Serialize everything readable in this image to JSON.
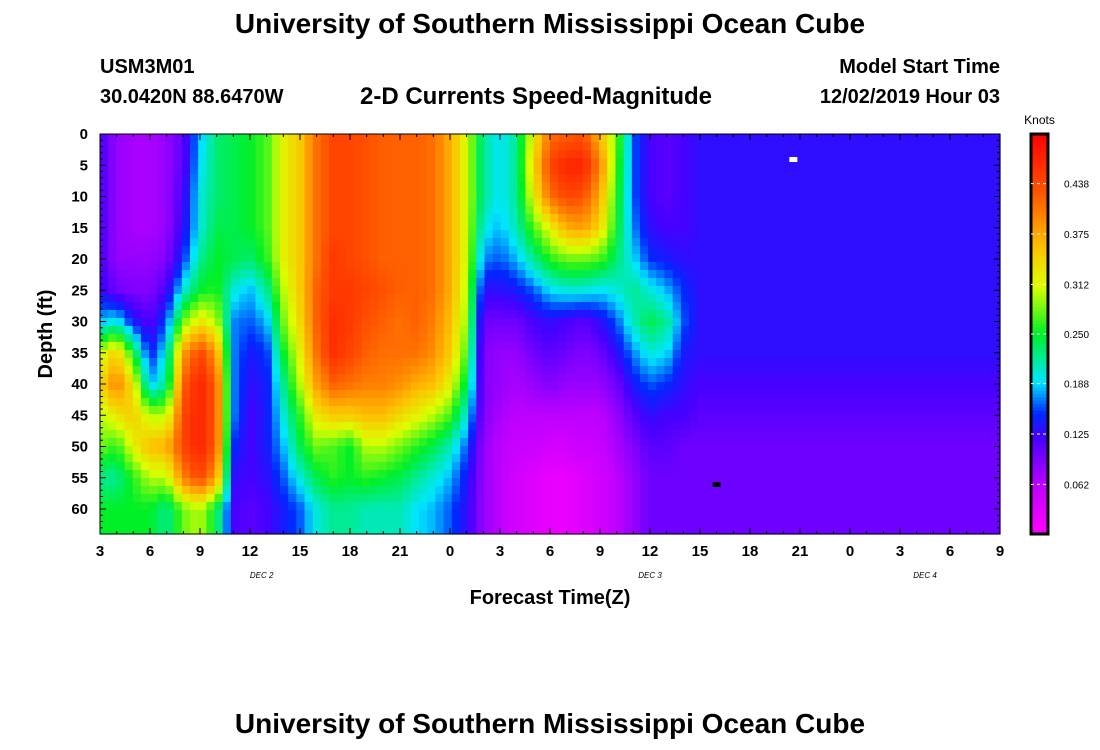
{
  "header": {
    "title": "University of Southern Mississippi Ocean Cube",
    "station": "USM3M01",
    "coordinates": "30.0420N 88.6470W",
    "subtitle": "2-D Currents Speed-Magnitude",
    "start_label": "Model Start Time",
    "start_value": "12/02/2019 Hour 03"
  },
  "footer": {
    "title": "University of Southern Mississippi Ocean Cube"
  },
  "chart_data": {
    "type": "heatmap",
    "xlabel": "Forecast Time(Z)",
    "ylabel": "Depth (ft)",
    "x_range_hours": [
      0,
      54
    ],
    "y_range": [
      0,
      64
    ],
    "y_inverted": true,
    "x_ticks": [
      {
        "hour": 0,
        "label": "3"
      },
      {
        "hour": 3,
        "label": "6"
      },
      {
        "hour": 6,
        "label": "9"
      },
      {
        "hour": 9,
        "label": "12"
      },
      {
        "hour": 12,
        "label": "15"
      },
      {
        "hour": 15,
        "label": "18"
      },
      {
        "hour": 18,
        "label": "21"
      },
      {
        "hour": 21,
        "label": "0"
      },
      {
        "hour": 24,
        "label": "3"
      },
      {
        "hour": 27,
        "label": "6"
      },
      {
        "hour": 30,
        "label": "9"
      },
      {
        "hour": 33,
        "label": "12"
      },
      {
        "hour": 36,
        "label": "15"
      },
      {
        "hour": 39,
        "label": "18"
      },
      {
        "hour": 42,
        "label": "21"
      },
      {
        "hour": 45,
        "label": "0"
      },
      {
        "hour": 48,
        "label": "3"
      },
      {
        "hour": 51,
        "label": "6"
      },
      {
        "hour": 54,
        "label": "9"
      }
    ],
    "y_ticks": [
      0,
      5,
      10,
      15,
      20,
      25,
      30,
      35,
      40,
      45,
      50,
      55,
      60
    ],
    "day_labels": [
      {
        "hour": 9.7,
        "label": "DEC 2"
      },
      {
        "hour": 33,
        "label": "DEC 3"
      },
      {
        "hour": 49.5,
        "label": "DEC 4"
      }
    ],
    "colorbar": {
      "unit": "Knots",
      "min": 0.0,
      "max": 0.5,
      "ticks": [
        0.062,
        0.125,
        0.188,
        0.25,
        0.312,
        0.375,
        0.438
      ],
      "tick_labels": [
        "0.062",
        "0.125",
        "0.188",
        "0.250",
        "0.312",
        "0.375",
        "0.438"
      ]
    },
    "markers": [
      {
        "name": "max-marker",
        "hour": 41.6,
        "depth": 4,
        "color": "#ffffff"
      },
      {
        "name": "min-marker",
        "hour": 37,
        "depth": 56,
        "color": "#000000"
      }
    ],
    "columns": [
      {
        "hour": 0,
        "values": [
          0.12,
          0.12,
          0.12,
          0.12,
          0.12,
          0.13,
          0.18,
          0.3,
          0.34,
          0.3,
          0.28,
          0.22,
          0.25
        ]
      },
      {
        "hour": 1,
        "values": [
          0.08,
          0.08,
          0.08,
          0.08,
          0.08,
          0.1,
          0.2,
          0.35,
          0.4,
          0.33,
          0.26,
          0.22,
          0.25
        ]
      },
      {
        "hour": 2,
        "values": [
          0.07,
          0.07,
          0.07,
          0.07,
          0.08,
          0.09,
          0.14,
          0.25,
          0.33,
          0.35,
          0.32,
          0.26,
          0.25
        ]
      },
      {
        "hour": 3,
        "values": [
          0.07,
          0.07,
          0.07,
          0.07,
          0.08,
          0.09,
          0.11,
          0.14,
          0.18,
          0.3,
          0.36,
          0.3,
          0.25
        ]
      },
      {
        "hour": 4,
        "values": [
          0.08,
          0.08,
          0.08,
          0.08,
          0.09,
          0.12,
          0.16,
          0.2,
          0.22,
          0.3,
          0.37,
          0.3,
          0.22
        ]
      },
      {
        "hour": 5,
        "values": [
          0.11,
          0.11,
          0.12,
          0.13,
          0.15,
          0.2,
          0.28,
          0.38,
          0.42,
          0.44,
          0.44,
          0.4,
          0.28
        ]
      },
      {
        "hour": 6,
        "values": [
          0.18,
          0.19,
          0.2,
          0.2,
          0.22,
          0.25,
          0.33,
          0.44,
          0.47,
          0.47,
          0.47,
          0.44,
          0.3
        ]
      },
      {
        "hour": 7,
        "values": [
          0.23,
          0.23,
          0.23,
          0.24,
          0.25,
          0.26,
          0.3,
          0.38,
          0.42,
          0.42,
          0.42,
          0.38,
          0.24
        ]
      },
      {
        "hour": 8,
        "values": [
          0.24,
          0.24,
          0.24,
          0.24,
          0.24,
          0.2,
          0.17,
          0.17,
          0.17,
          0.17,
          0.15,
          0.13,
          0.12
        ]
      },
      {
        "hour": 9,
        "values": [
          0.25,
          0.25,
          0.25,
          0.25,
          0.23,
          0.18,
          0.16,
          0.14,
          0.13,
          0.12,
          0.12,
          0.12,
          0.11
        ]
      },
      {
        "hour": 10,
        "values": [
          0.27,
          0.27,
          0.27,
          0.27,
          0.26,
          0.22,
          0.18,
          0.15,
          0.14,
          0.14,
          0.14,
          0.13,
          0.12
        ]
      },
      {
        "hour": 11,
        "values": [
          0.32,
          0.32,
          0.32,
          0.32,
          0.32,
          0.3,
          0.28,
          0.25,
          0.22,
          0.2,
          0.18,
          0.16,
          0.14
        ]
      },
      {
        "hour": 12,
        "values": [
          0.35,
          0.35,
          0.35,
          0.35,
          0.35,
          0.35,
          0.34,
          0.32,
          0.3,
          0.26,
          0.24,
          0.2,
          0.16
        ]
      },
      {
        "hour": 13,
        "values": [
          0.41,
          0.41,
          0.41,
          0.41,
          0.41,
          0.42,
          0.42,
          0.41,
          0.38,
          0.33,
          0.28,
          0.24,
          0.2
        ]
      },
      {
        "hour": 14,
        "values": [
          0.44,
          0.44,
          0.44,
          0.44,
          0.45,
          0.45,
          0.46,
          0.46,
          0.42,
          0.35,
          0.27,
          0.26,
          0.22
        ]
      },
      {
        "hour": 15,
        "values": [
          0.44,
          0.44,
          0.44,
          0.44,
          0.44,
          0.45,
          0.45,
          0.44,
          0.41,
          0.35,
          0.25,
          0.25,
          0.22
        ]
      },
      {
        "hour": 16,
        "values": [
          0.43,
          0.43,
          0.43,
          0.43,
          0.43,
          0.44,
          0.43,
          0.42,
          0.4,
          0.36,
          0.3,
          0.26,
          0.21
        ]
      },
      {
        "hour": 17,
        "values": [
          0.42,
          0.42,
          0.42,
          0.42,
          0.42,
          0.43,
          0.42,
          0.41,
          0.4,
          0.36,
          0.3,
          0.25,
          0.21
        ]
      },
      {
        "hour": 18,
        "values": [
          0.42,
          0.42,
          0.42,
          0.42,
          0.42,
          0.42,
          0.41,
          0.41,
          0.39,
          0.34,
          0.28,
          0.24,
          0.21
        ]
      },
      {
        "hour": 19,
        "values": [
          0.42,
          0.42,
          0.42,
          0.42,
          0.42,
          0.42,
          0.42,
          0.41,
          0.37,
          0.32,
          0.26,
          0.22,
          0.19
        ]
      },
      {
        "hour": 20,
        "values": [
          0.41,
          0.41,
          0.41,
          0.41,
          0.41,
          0.41,
          0.4,
          0.39,
          0.36,
          0.3,
          0.24,
          0.2,
          0.18
        ]
      },
      {
        "hour": 21,
        "values": [
          0.37,
          0.37,
          0.37,
          0.37,
          0.37,
          0.37,
          0.36,
          0.35,
          0.32,
          0.27,
          0.21,
          0.18,
          0.16
        ]
      },
      {
        "hour": 22,
        "values": [
          0.31,
          0.31,
          0.31,
          0.31,
          0.31,
          0.3,
          0.29,
          0.27,
          0.24,
          0.2,
          0.16,
          0.14,
          0.13
        ]
      },
      {
        "hour": 23,
        "values": [
          0.22,
          0.22,
          0.22,
          0.2,
          0.17,
          0.13,
          0.1,
          0.09,
          0.09,
          0.09,
          0.08,
          0.08,
          0.08
        ]
      },
      {
        "hour": 24,
        "values": [
          0.19,
          0.19,
          0.19,
          0.18,
          0.16,
          0.13,
          0.1,
          0.08,
          0.08,
          0.07,
          0.06,
          0.06,
          0.06
        ]
      },
      {
        "hour": 25,
        "values": [
          0.22,
          0.22,
          0.22,
          0.21,
          0.18,
          0.14,
          0.1,
          0.08,
          0.07,
          0.06,
          0.05,
          0.04,
          0.04
        ]
      },
      {
        "hour": 26,
        "values": [
          0.32,
          0.34,
          0.32,
          0.27,
          0.22,
          0.16,
          0.12,
          0.1,
          0.08,
          0.06,
          0.05,
          0.03,
          0.03
        ]
      },
      {
        "hour": 27,
        "values": [
          0.41,
          0.44,
          0.41,
          0.32,
          0.26,
          0.19,
          0.13,
          0.11,
          0.09,
          0.06,
          0.04,
          0.02,
          0.02
        ]
      },
      {
        "hour": 28,
        "values": [
          0.42,
          0.47,
          0.44,
          0.37,
          0.28,
          0.2,
          0.12,
          0.1,
          0.08,
          0.06,
          0.04,
          0.02,
          0.02
        ]
      },
      {
        "hour": 29,
        "values": [
          0.43,
          0.47,
          0.43,
          0.38,
          0.28,
          0.2,
          0.11,
          0.09,
          0.08,
          0.06,
          0.05,
          0.03,
          0.03
        ]
      },
      {
        "hour": 30,
        "values": [
          0.36,
          0.4,
          0.37,
          0.34,
          0.27,
          0.19,
          0.13,
          0.1,
          0.08,
          0.06,
          0.05,
          0.04,
          0.04
        ]
      },
      {
        "hour": 31,
        "values": [
          0.28,
          0.27,
          0.26,
          0.25,
          0.23,
          0.2,
          0.16,
          0.13,
          0.1,
          0.08,
          0.07,
          0.06,
          0.06
        ]
      },
      {
        "hour": 32,
        "values": [
          0.16,
          0.16,
          0.16,
          0.17,
          0.19,
          0.22,
          0.21,
          0.17,
          0.14,
          0.11,
          0.09,
          0.08,
          0.08
        ]
      },
      {
        "hour": 33,
        "values": [
          0.12,
          0.12,
          0.12,
          0.13,
          0.15,
          0.2,
          0.24,
          0.2,
          0.16,
          0.13,
          0.11,
          0.1,
          0.1
        ]
      },
      {
        "hour": 34,
        "values": [
          0.11,
          0.11,
          0.11,
          0.12,
          0.14,
          0.18,
          0.22,
          0.19,
          0.15,
          0.12,
          0.11,
          0.1,
          0.1
        ]
      },
      {
        "hour": 35,
        "values": [
          0.12,
          0.12,
          0.12,
          0.12,
          0.13,
          0.15,
          0.16,
          0.14,
          0.13,
          0.12,
          0.1,
          0.1,
          0.1
        ]
      },
      {
        "hour": 36,
        "values": [
          0.13,
          0.13,
          0.13,
          0.13,
          0.13,
          0.13,
          0.13,
          0.13,
          0.12,
          0.11,
          0.1,
          0.1,
          0.1
        ]
      }
    ]
  }
}
